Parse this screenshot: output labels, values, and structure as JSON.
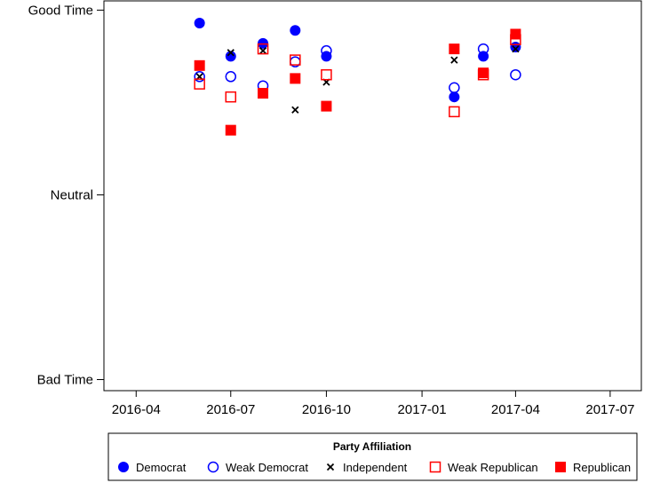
{
  "chart_data": {
    "type": "scatter",
    "title": "",
    "xlabel": "",
    "ylabel": "",
    "x_ticks": [
      "2016-04",
      "2016-07",
      "2016-10",
      "2017-01",
      "2017-04",
      "2017-07"
    ],
    "x_tick_dates": [
      "2016-04-01",
      "2016-07-01",
      "2016-10-01",
      "2017-01-01",
      "2017-04-01",
      "2017-07-01"
    ],
    "xlim": [
      "2016-03-01",
      "2017-07-31"
    ],
    "y_ticks": [
      {
        "value": 1,
        "label": "Good Time"
      },
      {
        "value": 0,
        "label": "Neutral"
      },
      {
        "value": -1,
        "label": "Bad Time"
      }
    ],
    "ylim": [
      -1.06,
      1.05
    ],
    "grid": false,
    "legend": {
      "title": "Party Affiliation",
      "placement": "bottom"
    },
    "series": [
      {
        "name": "Democrat",
        "marker": "filled-circle",
        "color": "#0000ff",
        "points": [
          {
            "x": "2016-06-01",
            "y": 0.93
          },
          {
            "x": "2016-07-01",
            "y": 0.75
          },
          {
            "x": "2016-08-01",
            "y": 0.82
          },
          {
            "x": "2016-09-01",
            "y": 0.89
          },
          {
            "x": "2016-10-01",
            "y": 0.75
          },
          {
            "x": "2017-02-01",
            "y": 0.53
          },
          {
            "x": "2017-03-01",
            "y": 0.75
          },
          {
            "x": "2017-04-01",
            "y": 0.8
          }
        ]
      },
      {
        "name": "Weak Democrat",
        "marker": "hollow-circle",
        "color": "#0000ff",
        "points": [
          {
            "x": "2016-06-01",
            "y": 0.64
          },
          {
            "x": "2016-07-01",
            "y": 0.64
          },
          {
            "x": "2016-08-01",
            "y": 0.59
          },
          {
            "x": "2016-09-01",
            "y": 0.72
          },
          {
            "x": "2016-10-01",
            "y": 0.78
          },
          {
            "x": "2017-02-01",
            "y": 0.58
          },
          {
            "x": "2017-03-01",
            "y": 0.79
          },
          {
            "x": "2017-04-01",
            "y": 0.65
          }
        ]
      },
      {
        "name": "Independent",
        "marker": "x",
        "color": "#000000",
        "points": [
          {
            "x": "2016-06-01",
            "y": 0.64
          },
          {
            "x": "2016-07-01",
            "y": 0.77
          },
          {
            "x": "2016-08-01",
            "y": 0.78
          },
          {
            "x": "2016-09-01",
            "y": 0.46
          },
          {
            "x": "2016-10-01",
            "y": 0.61
          },
          {
            "x": "2017-02-01",
            "y": 0.73
          },
          {
            "x": "2017-03-01",
            "y": 0.66
          },
          {
            "x": "2017-04-01",
            "y": 0.79
          }
        ]
      },
      {
        "name": "Weak Republican",
        "marker": "hollow-square",
        "color": "#ff0000",
        "points": [
          {
            "x": "2016-06-01",
            "y": 0.6
          },
          {
            "x": "2016-07-01",
            "y": 0.53
          },
          {
            "x": "2016-08-01",
            "y": 0.79
          },
          {
            "x": "2016-09-01",
            "y": 0.73
          },
          {
            "x": "2016-10-01",
            "y": 0.65
          },
          {
            "x": "2017-02-01",
            "y": 0.45
          },
          {
            "x": "2017-03-01",
            "y": 0.65
          },
          {
            "x": "2017-04-01",
            "y": 0.84
          }
        ]
      },
      {
        "name": "Republican",
        "marker": "filled-square",
        "color": "#ff0000",
        "points": [
          {
            "x": "2016-06-01",
            "y": 0.7
          },
          {
            "x": "2016-07-01",
            "y": 0.35
          },
          {
            "x": "2016-08-01",
            "y": 0.55
          },
          {
            "x": "2016-09-01",
            "y": 0.63
          },
          {
            "x": "2016-10-01",
            "y": 0.48
          },
          {
            "x": "2017-02-01",
            "y": 0.79
          },
          {
            "x": "2017-03-01",
            "y": 0.66
          },
          {
            "x": "2017-04-01",
            "y": 0.87
          }
        ]
      }
    ]
  }
}
